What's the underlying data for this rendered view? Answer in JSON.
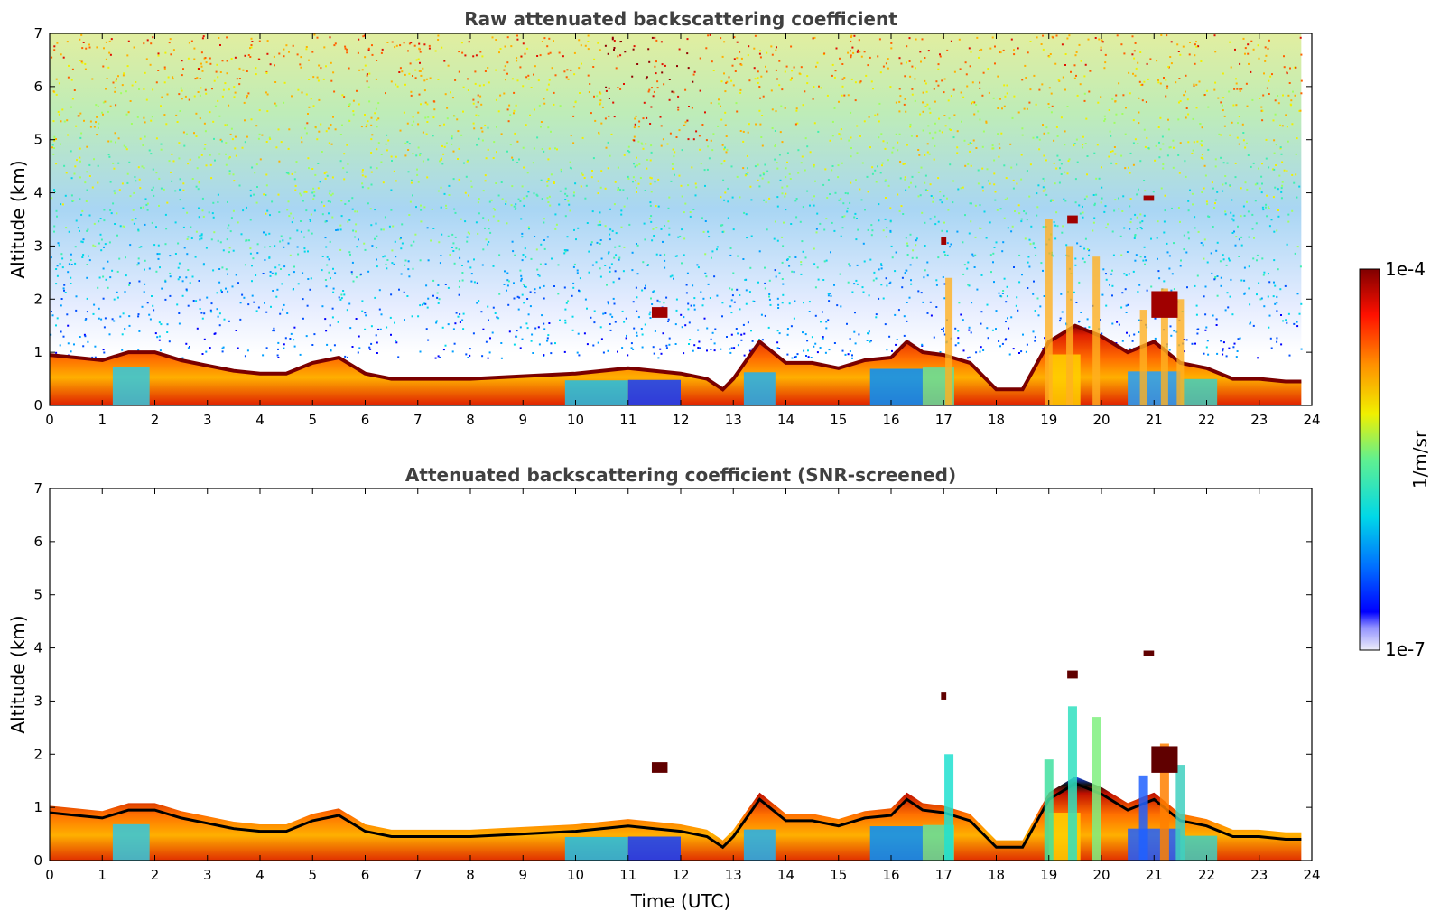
{
  "chart_data": [
    {
      "type": "heatmap",
      "title": "Raw attenuated backscattering coefficient",
      "xlabel": "",
      "ylabel": "Altitude (km)",
      "xlim": [
        0,
        24
      ],
      "ylim": [
        0,
        7
      ],
      "xticks": [
        "0",
        "1",
        "2",
        "3",
        "4",
        "5",
        "6",
        "7",
        "8",
        "9",
        "10",
        "11",
        "12",
        "13",
        "14",
        "15",
        "16",
        "17",
        "18",
        "19",
        "20",
        "21",
        "22",
        "23",
        "24"
      ],
      "yticks": [
        "0",
        "1",
        "2",
        "3",
        "4",
        "5",
        "6",
        "7"
      ],
      "data_end_hour": 23.8,
      "boundary_layer_top_km": [
        [
          0,
          0.95
        ],
        [
          0.5,
          0.9
        ],
        [
          1,
          0.85
        ],
        [
          1.5,
          1.0
        ],
        [
          2,
          1.0
        ],
        [
          2.5,
          0.85
        ],
        [
          3,
          0.75
        ],
        [
          3.5,
          0.65
        ],
        [
          4,
          0.6
        ],
        [
          4.5,
          0.6
        ],
        [
          5,
          0.8
        ],
        [
          5.5,
          0.9
        ],
        [
          6,
          0.6
        ],
        [
          6.5,
          0.5
        ],
        [
          7,
          0.5
        ],
        [
          8,
          0.5
        ],
        [
          9,
          0.55
        ],
        [
          10,
          0.6
        ],
        [
          11,
          0.7
        ],
        [
          11.5,
          0.65
        ],
        [
          12,
          0.6
        ],
        [
          12.5,
          0.5
        ],
        [
          12.8,
          0.3
        ],
        [
          13,
          0.5
        ],
        [
          13.5,
          1.2
        ],
        [
          14,
          0.8
        ],
        [
          14.5,
          0.8
        ],
        [
          15,
          0.7
        ],
        [
          15.5,
          0.85
        ],
        [
          16,
          0.9
        ],
        [
          16.3,
          1.2
        ],
        [
          16.6,
          1.0
        ],
        [
          17,
          0.95
        ],
        [
          17.5,
          0.8
        ],
        [
          18,
          0.3
        ],
        [
          18.5,
          0.3
        ],
        [
          19,
          1.2
        ],
        [
          19.5,
          1.5
        ],
        [
          20,
          1.3
        ],
        [
          20.5,
          1.0
        ],
        [
          21,
          1.2
        ],
        [
          21.5,
          0.8
        ],
        [
          22,
          0.7
        ],
        [
          22.5,
          0.5
        ],
        [
          23,
          0.5
        ],
        [
          23.5,
          0.45
        ],
        [
          23.8,
          0.45
        ]
      ],
      "clouds": [
        {
          "t": 11.6,
          "alt_km": 1.75,
          "width_h": 0.3,
          "depth_km": 0.2
        },
        {
          "t": 17.0,
          "alt_km": 3.1,
          "width_h": 0.1,
          "depth_km": 0.15
        },
        {
          "t": 19.45,
          "alt_km": 3.5,
          "width_h": 0.2,
          "depth_km": 0.15
        },
        {
          "t": 20.9,
          "alt_km": 3.9,
          "width_h": 0.2,
          "depth_km": 0.1
        },
        {
          "t": 21.2,
          "alt_km": 1.9,
          "width_h": 0.5,
          "depth_km": 0.5
        }
      ]
    },
    {
      "type": "heatmap",
      "title": "Attenuated backscattering coefficient (SNR-screened)",
      "xlabel": "Time (UTC)",
      "ylabel": "Altitude (km)",
      "xlim": [
        0,
        24
      ],
      "ylim": [
        0,
        7
      ],
      "xticks": [
        "0",
        "1",
        "2",
        "3",
        "4",
        "5",
        "6",
        "7",
        "8",
        "9",
        "10",
        "11",
        "12",
        "13",
        "14",
        "15",
        "16",
        "17",
        "18",
        "19",
        "20",
        "21",
        "22",
        "23",
        "24"
      ],
      "yticks": [
        "0",
        "1",
        "2",
        "3",
        "4",
        "5",
        "6",
        "7"
      ],
      "data_end_hour": 23.8
    }
  ],
  "colorbar": {
    "label": "1/m/sr",
    "max_label": "1e-4",
    "min_label": "1e-7",
    "scale": "log",
    "colormap": [
      "#e8e8f8",
      "#7f7fff",
      "#0000ff",
      "#0080ff",
      "#00e0e0",
      "#80ff80",
      "#ffff00",
      "#ff8000",
      "#ff0000",
      "#800000"
    ]
  }
}
